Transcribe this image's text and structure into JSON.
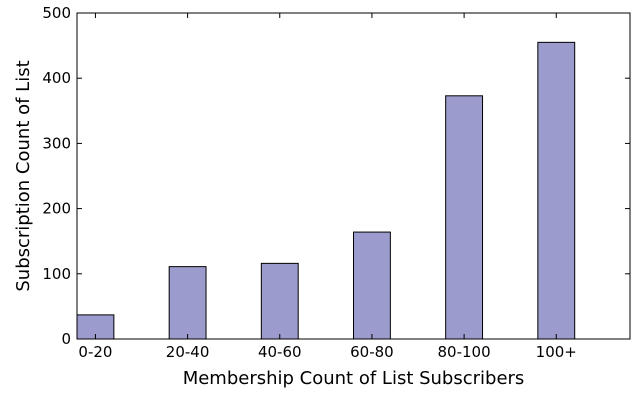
{
  "chart_data": {
    "type": "bar",
    "categories": [
      "0-20",
      "20-40",
      "40-60",
      "60-80",
      "80-100",
      "100+"
    ],
    "values": [
      37,
      111,
      116,
      164,
      373,
      455
    ],
    "title": "",
    "xlabel": "Membership Count of List Subscribers",
    "ylabel": "Subscription Count of List",
    "ylim": [
      0,
      500
    ],
    "yticks": [
      0,
      100,
      200,
      300,
      400,
      500
    ],
    "grid": false,
    "colors": {
      "bar": "#9b9bcd",
      "edge": "#000000"
    }
  }
}
